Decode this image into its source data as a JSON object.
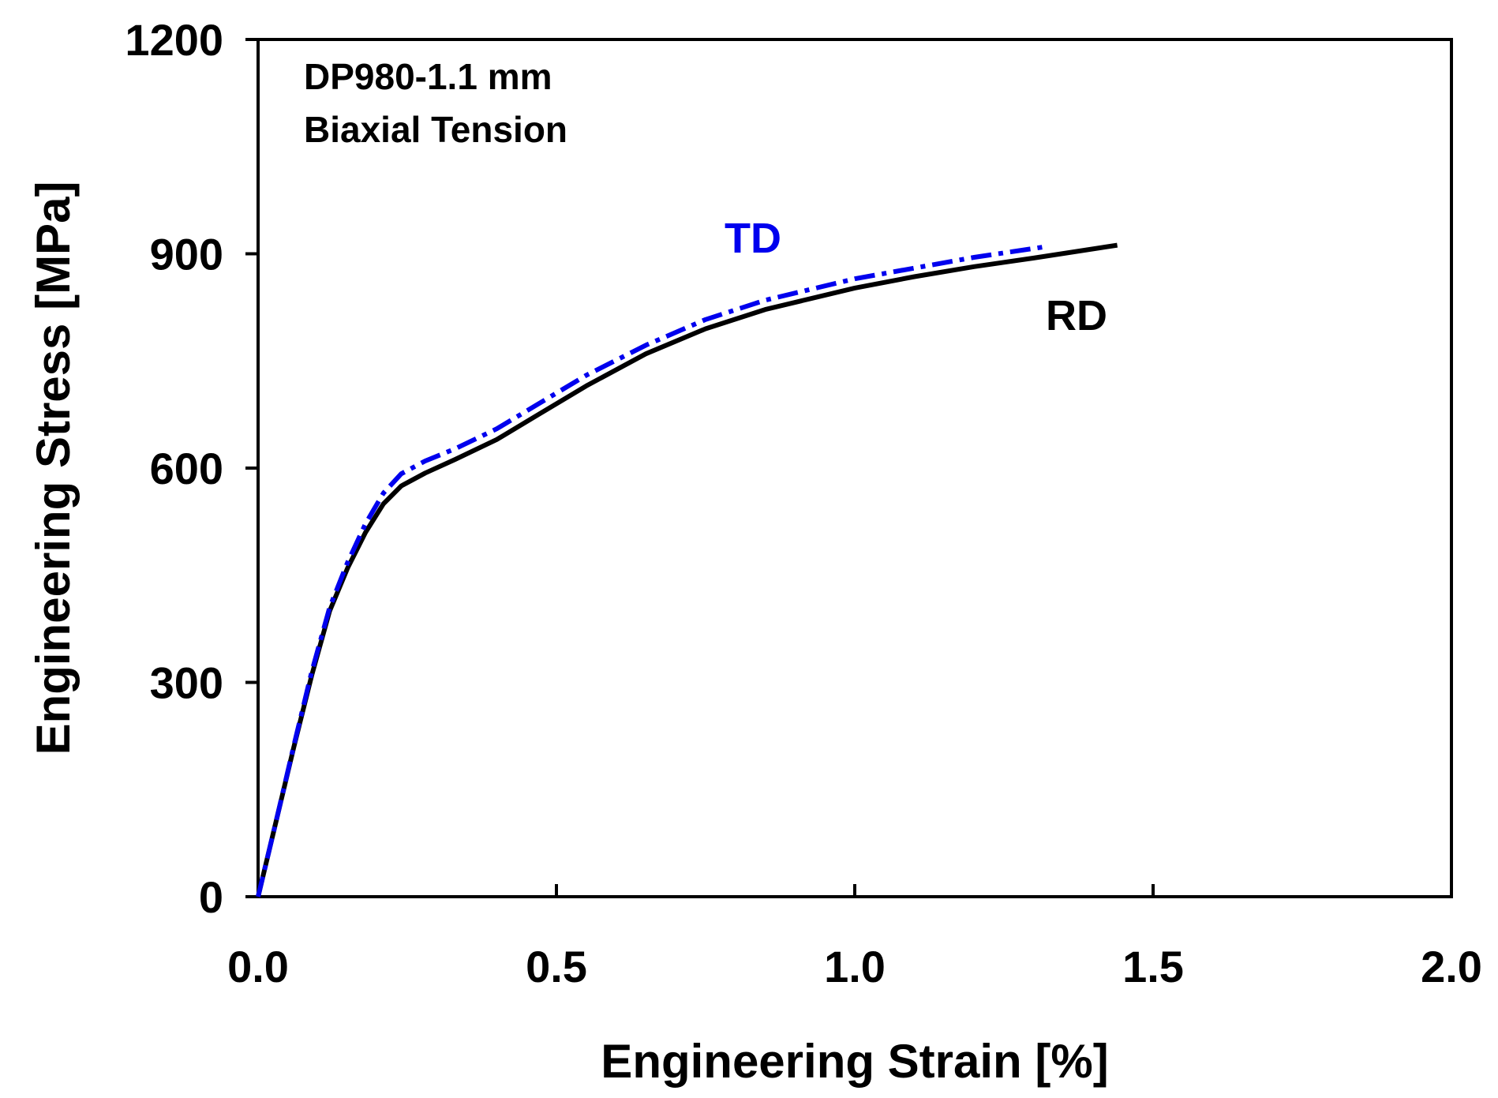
{
  "chart_data": {
    "type": "line",
    "title": "",
    "xlabel": "Engineering Strain [%]",
    "ylabel": "Engineering Stress [MPa]",
    "xlim": [
      0,
      2.0
    ],
    "ylim": [
      0,
      1200
    ],
    "xticks": [
      0.0,
      0.5,
      1.0,
      1.5,
      2.0
    ],
    "xtick_labels": [
      "0.0",
      "0.5",
      "1.0",
      "1.5",
      "2.0"
    ],
    "yticks": [
      0,
      300,
      600,
      900,
      1200
    ],
    "ytick_labels": [
      "0",
      "300",
      "600",
      "900",
      "1200"
    ],
    "grid": false,
    "annotations": [
      "DP980-1.1 mm",
      "Biaxial Tension"
    ],
    "series": [
      {
        "name": "RD",
        "label": "RD",
        "color": "#000000",
        "style": "solid",
        "x": [
          0.0,
          0.03,
          0.06,
          0.09,
          0.12,
          0.15,
          0.18,
          0.21,
          0.24,
          0.28,
          0.33,
          0.4,
          0.47,
          0.55,
          0.65,
          0.75,
          0.85,
          1.0,
          1.1,
          1.2,
          1.3,
          1.44
        ],
        "y": [
          0,
          105,
          210,
          310,
          400,
          460,
          510,
          550,
          575,
          593,
          612,
          640,
          675,
          715,
          760,
          795,
          822,
          852,
          868,
          882,
          894,
          912
        ]
      },
      {
        "name": "TD",
        "label": "TD",
        "color": "#0000ee",
        "style": "dashdot",
        "x": [
          0.0,
          0.03,
          0.06,
          0.09,
          0.12,
          0.15,
          0.18,
          0.21,
          0.24,
          0.28,
          0.33,
          0.4,
          0.47,
          0.55,
          0.65,
          0.75,
          0.85,
          1.0,
          1.1,
          1.2,
          1.32
        ],
        "y": [
          0,
          105,
          212,
          315,
          405,
          468,
          522,
          565,
          592,
          610,
          627,
          655,
          690,
          730,
          772,
          808,
          835,
          865,
          880,
          895,
          910
        ]
      }
    ]
  }
}
